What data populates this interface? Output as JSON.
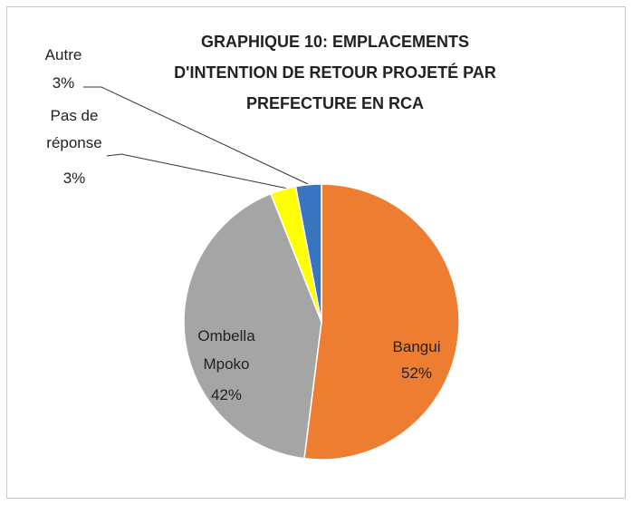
{
  "chart_data": {
    "type": "pie",
    "title": [
      "GRAPHIQUE 10: EMPLACEMENTS",
      "D'INTENTION DE RETOUR PROJETÉ PAR",
      "PREFECTURE EN RCA"
    ],
    "categories": [
      "Bangui",
      "Ombella Mpoko",
      "Pas de réponse",
      "Autre"
    ],
    "values": [
      52,
      42,
      3,
      3
    ],
    "value_labels": [
      "52%",
      "42%",
      "3%",
      "3%"
    ],
    "colors": [
      "#ed7d31",
      "#a5a5a5",
      "#ffff00",
      "#3a76c0"
    ]
  }
}
